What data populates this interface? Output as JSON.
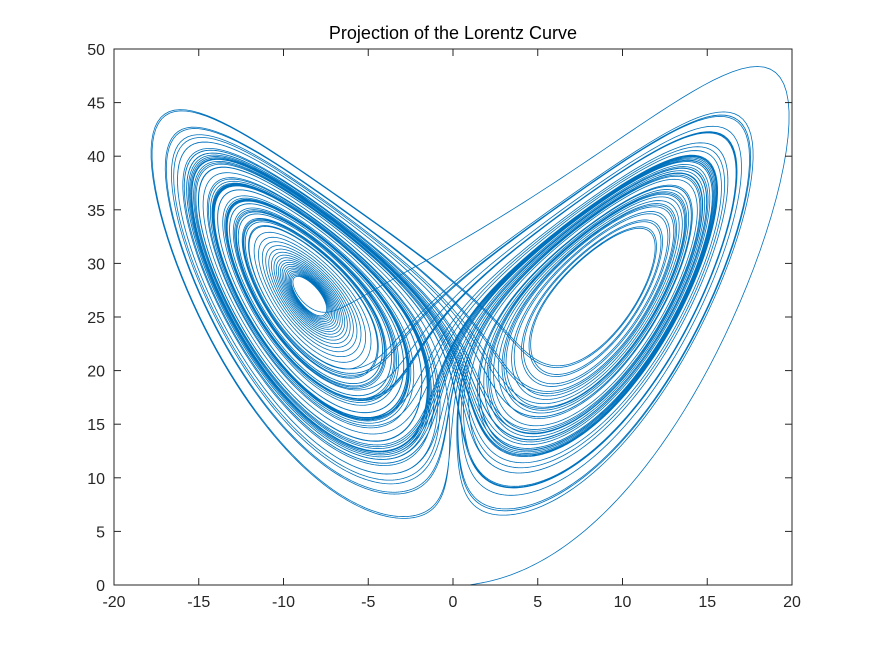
{
  "chart_data": {
    "type": "line",
    "title": "Projection of the Lorentz Curve",
    "xlabel": "",
    "ylabel": "",
    "xlim": [
      -20,
      20
    ],
    "ylim": [
      0,
      50
    ],
    "x_ticks": [
      -20,
      -15,
      -10,
      -5,
      0,
      5,
      10,
      15,
      20
    ],
    "y_ticks": [
      0,
      5,
      10,
      15,
      20,
      25,
      30,
      35,
      40,
      45,
      50
    ],
    "x_tick_labels": [
      "-20",
      "-15",
      "-10",
      "-5",
      "0",
      "5",
      "10",
      "15",
      "20"
    ],
    "y_tick_labels": [
      "0",
      "5",
      "10",
      "15",
      "20",
      "25",
      "30",
      "35",
      "40",
      "45",
      "50"
    ],
    "grid": false,
    "legend": "none",
    "series": [
      {
        "color": "#0072BD",
        "curve": "lorenz-attractor-xz-projection",
        "parameters": {
          "sigma": 10,
          "rho": 28,
          "beta": 2.6667
        },
        "initial_state": [
          1,
          1,
          0
        ]
      }
    ]
  }
}
